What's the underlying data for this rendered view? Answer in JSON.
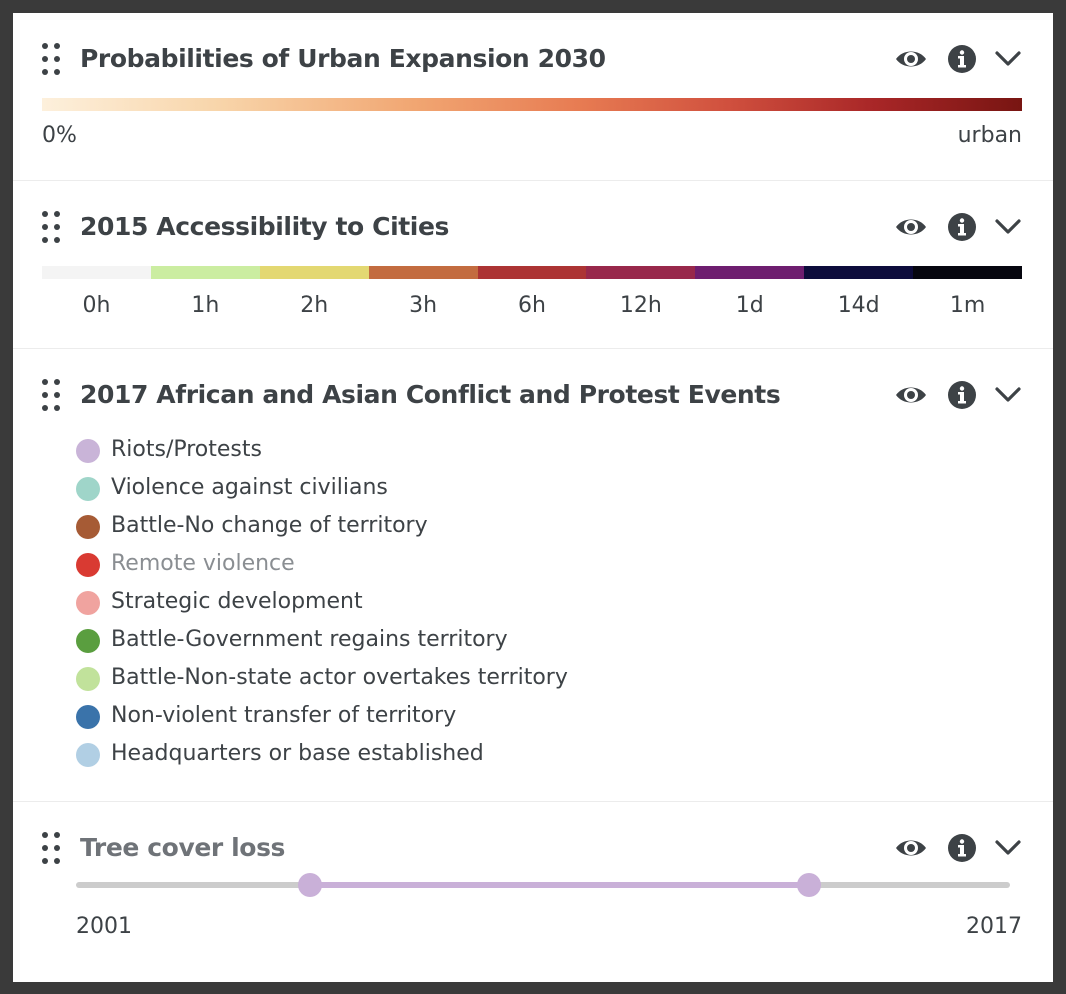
{
  "colors": {
    "accessibility_segments": [
      "#f4f4f4",
      "#cbeda1",
      "#e3d872",
      "#c36c40",
      "#ac3434",
      "#98284b",
      "#6e1e6f",
      "#0d0c3b",
      "#06060f"
    ],
    "slider_accent": "#c9b0d8",
    "slider_track": "#cccccc"
  },
  "layers": {
    "urban": {
      "title": "Probabilities of Urban Expansion 2030",
      "legend_min": "0%",
      "legend_max": "urban"
    },
    "accessibility": {
      "title": "2015 Accessibility to Cities",
      "labels": [
        "0h",
        "1h",
        "2h",
        "3h",
        "6h",
        "12h",
        "1d",
        "14d",
        "1m"
      ]
    },
    "conflict": {
      "title": "2017 African and Asian Conflict and Protest Events",
      "items": [
        {
          "label": "Riots/Protests",
          "color": "#c9b4d8",
          "dimmed": false
        },
        {
          "label": "Violence against civilians",
          "color": "#9fd5c9",
          "dimmed": false
        },
        {
          "label": "Battle-No change of territory",
          "color": "#a65b35",
          "dimmed": false
        },
        {
          "label": "Remote violence",
          "color": "#d93a32",
          "dimmed": true
        },
        {
          "label": "Strategic development",
          "color": "#f0a39f",
          "dimmed": false
        },
        {
          "label": "Battle-Government regains territory",
          "color": "#5a9e3f",
          "dimmed": false
        },
        {
          "label": "Battle-Non-state actor overtakes territory",
          "color": "#c1e29b",
          "dimmed": false
        },
        {
          "label": "Non-violent transfer of territory",
          "color": "#3a73aa",
          "dimmed": false
        },
        {
          "label": "Headquarters or base established",
          "color": "#b1cfe4",
          "dimmed": false
        }
      ]
    },
    "tree": {
      "title": "Tree cover loss",
      "range_start": "2001",
      "range_end": "2017",
      "selected_start_fraction": 0.25,
      "selected_end_fraction": 0.785
    }
  },
  "icons": {
    "drag": "drag-handle-icon",
    "visibility": "eye-icon",
    "info": "info-icon",
    "collapse": "chevron-down-icon"
  }
}
